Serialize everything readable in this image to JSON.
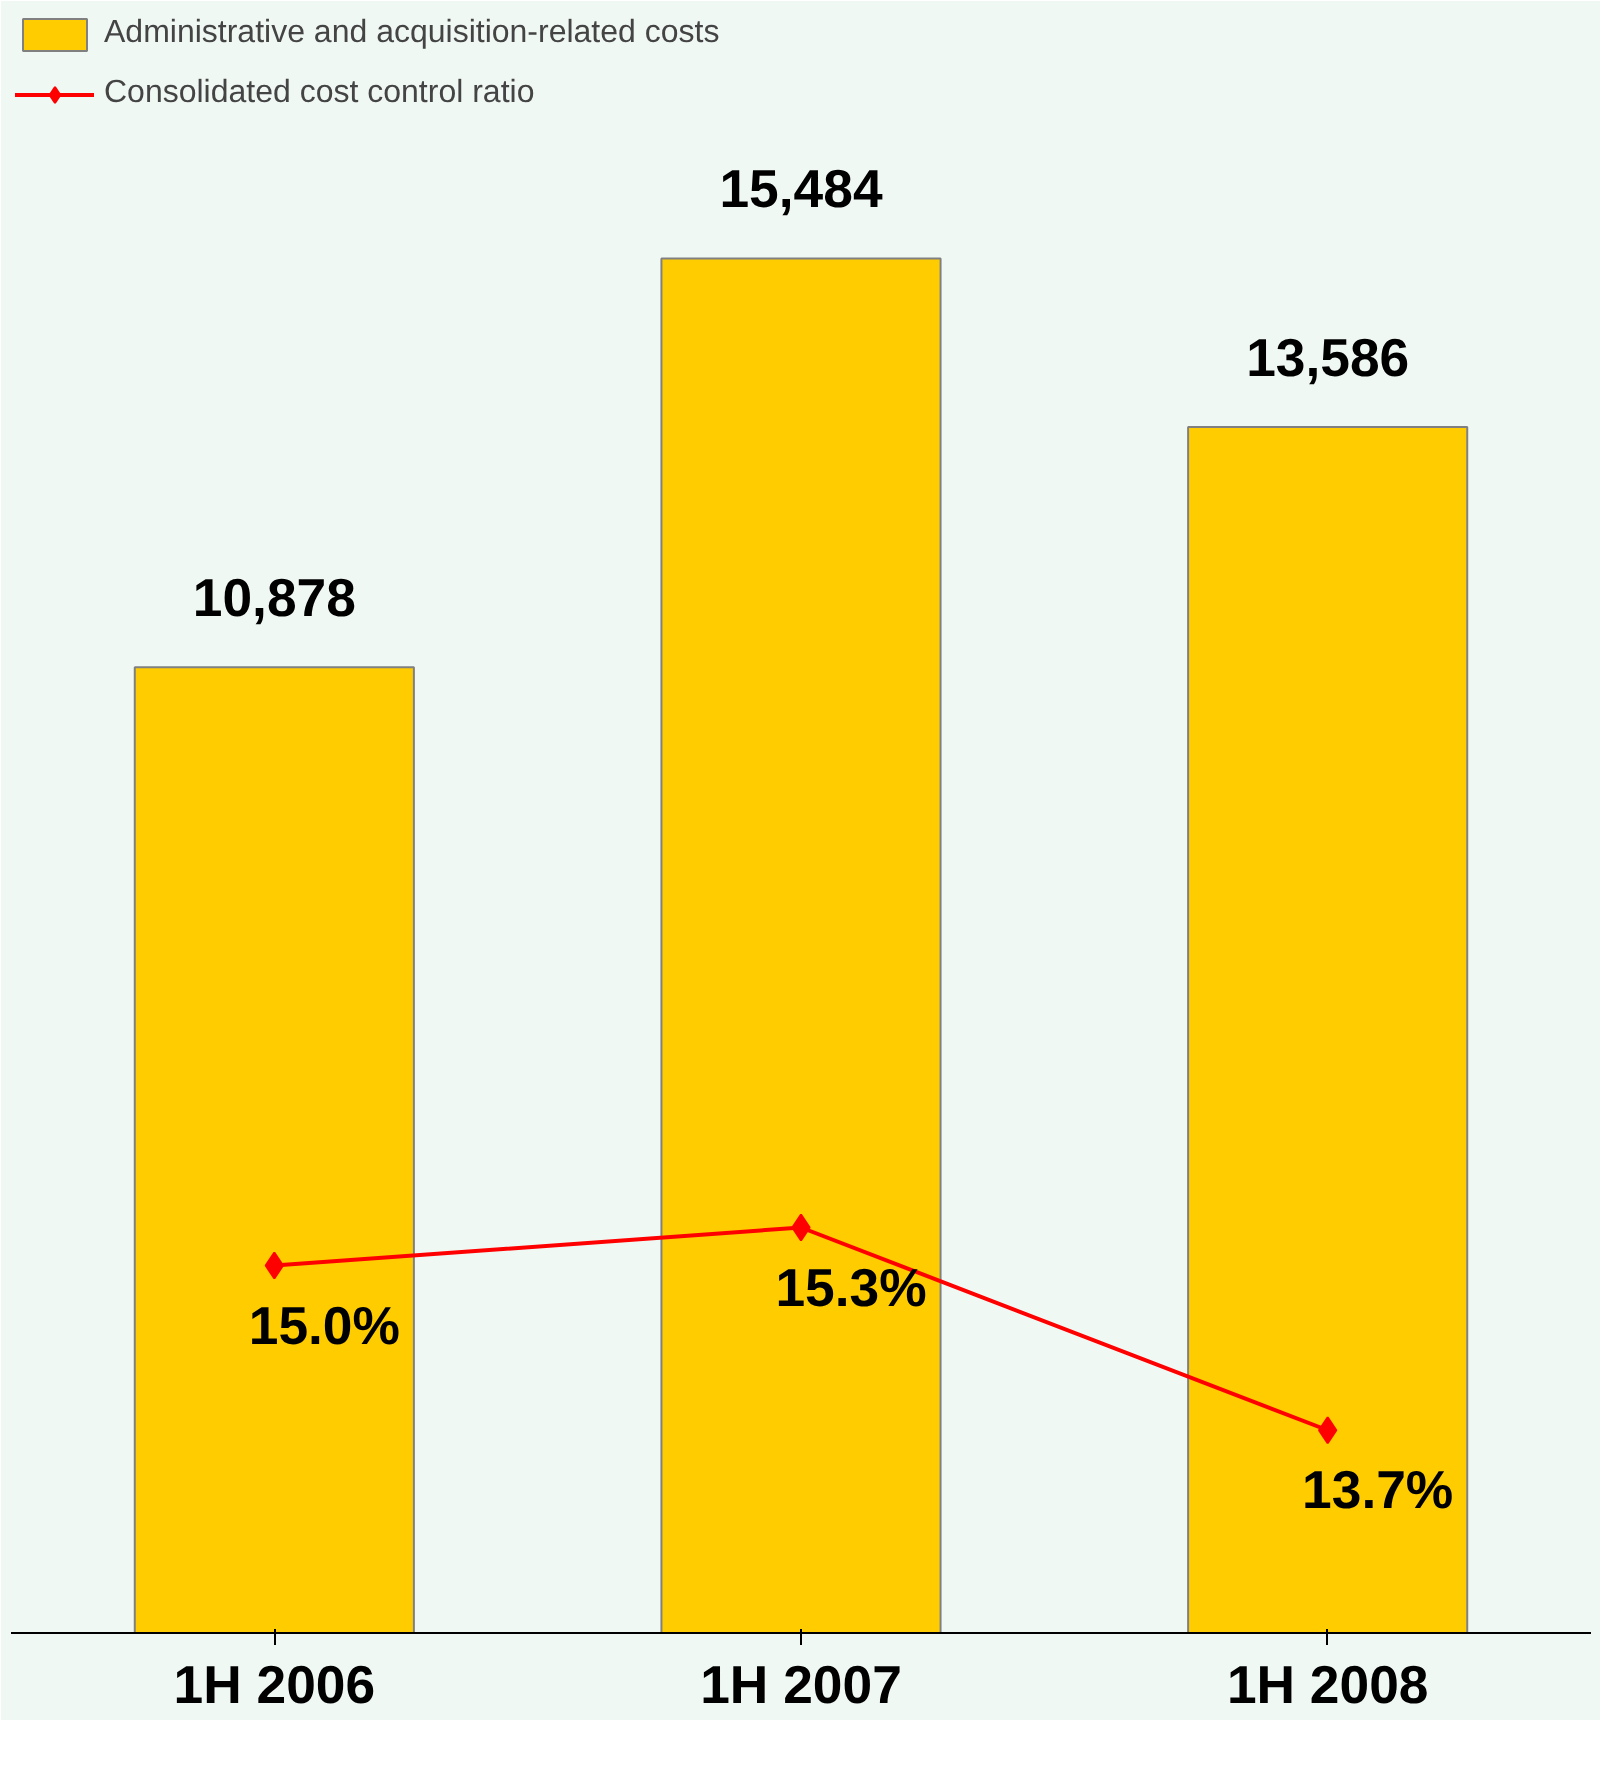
{
  "chart_data": {
    "type": "bar",
    "categories": [
      "1H 2006",
      "1H 2007",
      "1H 2008"
    ],
    "series": [
      {
        "name": "Administrative and acquisition-related costs",
        "color": "#ffcc00",
        "values": [
          10878,
          15484,
          13586
        ],
        "value_labels": [
          "10,878",
          "15,484",
          "13,586"
        ]
      },
      {
        "name": "Consolidated cost control ratio",
        "type": "line",
        "axis": "y2",
        "color": "#ff0000",
        "marker": "diamond",
        "values": [
          15.0,
          15.3,
          13.7
        ],
        "value_labels": [
          "15.0%",
          "15.3%",
          "13.7%"
        ]
      }
    ],
    "tick_labels": "x",
    "legend": "top left",
    "grid": false
  }
}
